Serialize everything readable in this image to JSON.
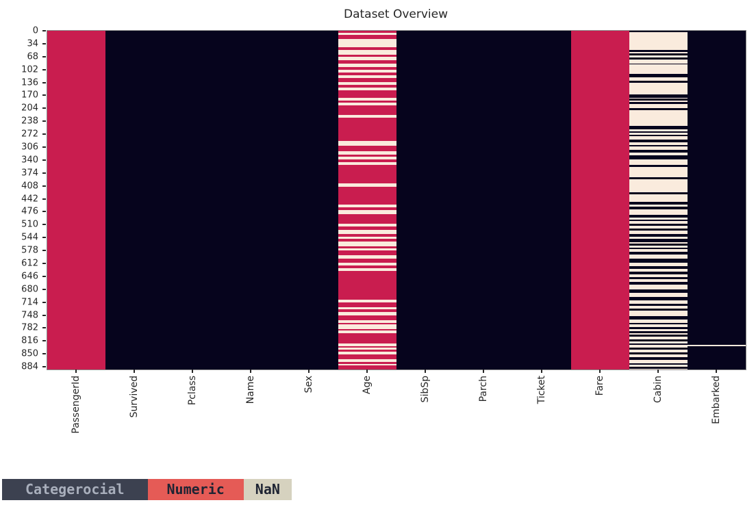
{
  "title": "Dataset Overview",
  "chart_data": {
    "type": "heatmap",
    "title": "Dataset Overview",
    "n_rows": 891,
    "y_ticks": [
      0,
      34,
      68,
      102,
      136,
      170,
      204,
      238,
      272,
      306,
      340,
      374,
      408,
      442,
      476,
      510,
      544,
      578,
      612,
      646,
      680,
      714,
      748,
      782,
      816,
      850,
      884
    ],
    "colors": {
      "Categerocial": "#06041D",
      "Numeric": "#C91D4F",
      "NaN": "#FAEBDD"
    },
    "legend_position": "bottom-left",
    "grid": false,
    "columns": [
      {
        "label": "PassengerId",
        "base": "Numeric",
        "band_type": null,
        "bands": []
      },
      {
        "label": "Survived",
        "base": "Categerocial",
        "band_type": null,
        "bands": []
      },
      {
        "label": "Pclass",
        "base": "Categerocial",
        "band_type": null,
        "bands": []
      },
      {
        "label": "Name",
        "base": "Categerocial",
        "band_type": null,
        "bands": []
      },
      {
        "label": "Sex",
        "base": "Categerocial",
        "band_type": null,
        "bands": []
      },
      {
        "label": "Age",
        "base": "Numeric",
        "band_type": "NaN",
        "bands": [
          [
            6,
            10
          ],
          [
            22,
            43
          ],
          [
            50,
            63
          ],
          [
            68,
            77
          ],
          [
            87,
            95
          ],
          [
            102,
            109
          ],
          [
            117,
            124
          ],
          [
            135,
            143
          ],
          [
            150,
            157
          ],
          [
            176,
            184
          ],
          [
            189,
            197
          ],
          [
            222,
            229
          ],
          [
            290,
            303
          ],
          [
            317,
            325
          ],
          [
            331,
            338
          ],
          [
            346,
            353
          ],
          [
            401,
            410
          ],
          [
            458,
            465
          ],
          [
            471,
            482
          ],
          [
            507,
            515
          ],
          [
            523,
            534
          ],
          [
            541,
            548
          ],
          [
            554,
            567
          ],
          [
            573,
            578
          ],
          [
            591,
            599
          ],
          [
            611,
            617
          ],
          [
            625,
            632
          ],
          [
            707,
            715
          ],
          [
            727,
            733
          ],
          [
            740,
            748
          ],
          [
            762,
            769
          ],
          [
            772,
            784
          ],
          [
            788,
            795
          ],
          [
            823,
            830
          ],
          [
            834,
            838
          ],
          [
            844,
            851
          ],
          [
            864,
            871
          ],
          [
            877,
            880
          ]
        ]
      },
      {
        "label": "SibSp",
        "base": "Categerocial",
        "band_type": null,
        "bands": []
      },
      {
        "label": "Parch",
        "base": "Categerocial",
        "band_type": null,
        "bands": []
      },
      {
        "label": "Ticket",
        "base": "Categerocial",
        "band_type": null,
        "bands": []
      },
      {
        "label": "Fare",
        "base": "Numeric",
        "band_type": null,
        "bands": []
      },
      {
        "label": "Cabin",
        "base": "NaN",
        "band_type": "Categerocial",
        "bands": [
          [
            0,
            3
          ],
          [
            50,
            56
          ],
          [
            60,
            65
          ],
          [
            71,
            75
          ],
          [
            86,
            89
          ],
          [
            113,
            122
          ],
          [
            131,
            136
          ],
          [
            167,
            176
          ],
          [
            179,
            184
          ],
          [
            188,
            193
          ],
          [
            203,
            209
          ],
          [
            251,
            260
          ],
          [
            264,
            269
          ],
          [
            274,
            278
          ],
          [
            287,
            293
          ],
          [
            300,
            305
          ],
          [
            314,
            320
          ],
          [
            328,
            338
          ],
          [
            353,
            359
          ],
          [
            386,
            390
          ],
          [
            424,
            431
          ],
          [
            450,
            458
          ],
          [
            462,
            469
          ],
          [
            485,
            491
          ],
          [
            496,
            501
          ],
          [
            508,
            513
          ],
          [
            520,
            525
          ],
          [
            535,
            541
          ],
          [
            548,
            556
          ],
          [
            560,
            565
          ],
          [
            570,
            575
          ],
          [
            581,
            589
          ],
          [
            600,
            610
          ],
          [
            620,
            627
          ],
          [
            634,
            641
          ],
          [
            648,
            653
          ],
          [
            660,
            668
          ],
          [
            680,
            690
          ],
          [
            700,
            710
          ],
          [
            718,
            723
          ],
          [
            730,
            737
          ],
          [
            750,
            760
          ],
          [
            768,
            773
          ],
          [
            780,
            785
          ],
          [
            790,
            795
          ],
          [
            800,
            805
          ],
          [
            812,
            817
          ],
          [
            822,
            827
          ],
          [
            834,
            839
          ],
          [
            846,
            851
          ],
          [
            858,
            866
          ],
          [
            874,
            879
          ],
          [
            884,
            889
          ]
        ]
      },
      {
        "label": "Embarked",
        "base": "Categerocial",
        "band_type": "NaN",
        "bands": [
          [
            826,
            830
          ]
        ]
      }
    ]
  },
  "legend": {
    "items": [
      {
        "label": "Categerocial",
        "bg": "#3C4150",
        "fg": "#A9AFBC"
      },
      {
        "label": "Numeric",
        "bg": "#E55B56",
        "fg": "#1E2433"
      },
      {
        "label": "NaN",
        "bg": "#D6D2BF",
        "fg": "#1E2433"
      }
    ]
  }
}
